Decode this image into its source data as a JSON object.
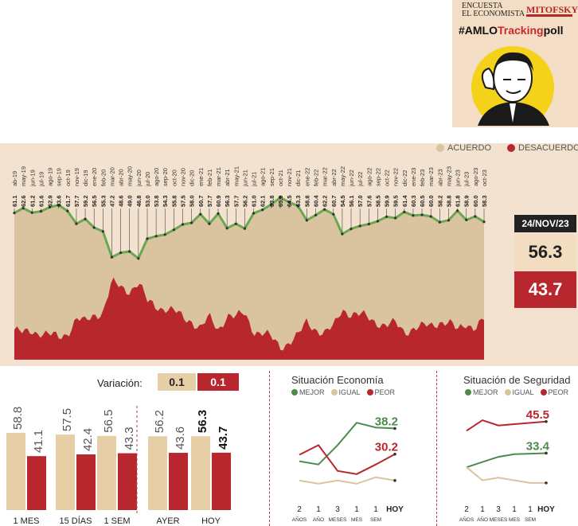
{
  "brand": {
    "encuesta": "ENCUESTA",
    "economista": "EL ECONOMISTA",
    "mitofsky": "MITOFSKY",
    "hashtag_pre": "#AMLO",
    "hashtag_hl": "Tracking",
    "hashtag_post": "poll"
  },
  "legend": {
    "agree": "ACUERDO",
    "disagree": "DESACUERDO"
  },
  "colors": {
    "agree": "#d9c49f",
    "disagree": "#b8272d",
    "line": "#6aa84f",
    "background": "#f3e2cf"
  },
  "current": {
    "date": "24/NOV/23",
    "agree": "56.3",
    "disagree": "43.7"
  },
  "chart_data": [
    {
      "type": "area",
      "series": [
        {
          "name": "ACUERDO",
          "values": [
            61.1,
            62.6,
            61.2,
            61.6,
            62.9,
            63.6,
            61.7,
            57.7,
            59.2,
            56.5,
            55.3,
            47.2,
            48.6,
            49.0,
            46.8,
            53.0,
            53.8,
            54.3,
            55.8,
            57.5,
            58.0,
            60.7,
            57.7,
            60.9,
            56.3,
            57.7,
            56.2,
            61.0,
            62.1,
            63.8,
            65.9,
            64.5,
            63.3,
            58.8,
            60.4,
            62.2,
            60.7,
            54.5,
            56.1,
            57.0,
            57.6,
            58.5,
            59.9,
            59.5,
            61.4,
            60.3,
            60.5,
            60.0,
            58.2,
            58.8,
            61.8,
            58.9,
            60.0,
            58.3
          ]
        }
      ],
      "x_labels": [
        "ab-19",
        "may-19",
        "jun-19",
        "jul-19",
        "ago-19",
        "sep-19",
        "oct-19",
        "nov-19",
        "dic-19",
        "ene-20",
        "feb-20",
        "mar-20",
        "abr-20",
        "may-20",
        "jun-20",
        "jul-20",
        "ago-20",
        "sep-20",
        "oct-20",
        "nov-20",
        "dic-20",
        "ene-21",
        "feb-21",
        "mar-21",
        "abr-21",
        "may-21",
        "jun-21",
        "jul-21",
        "ago-21",
        "sep-21",
        "oct-21",
        "nov-21",
        "dic-21",
        "ene-22",
        "feb-22",
        "mar-22",
        "abr-22",
        "may-22",
        "jun-22",
        "jul-22",
        "ago-22",
        "sep-22",
        "oct-22",
        "nov-22",
        "dic-22",
        "ene-23",
        "feb-23",
        "mar-23",
        "abr-23",
        "may-23",
        "jun-23",
        "jul-23",
        "ago-23",
        "oct-23"
      ],
      "value_labels": [
        "61.1",
        "62.6",
        "61.2",
        "61.6",
        "62.9",
        "63.6",
        "61.7",
        "57.7",
        "59.2",
        "56.5",
        "55.3",
        "47.2",
        "48.6",
        "49.0",
        "46.8",
        "53.0",
        "53.8",
        "54.3",
        "55.8",
        "57.5",
        "58.0",
        "60.7",
        "57.7",
        "60.9",
        "56.3",
        "57.7",
        "56.2",
        "61.0",
        "62.1",
        "63.8",
        "65.9",
        "64.5",
        "63.3",
        "58.8",
        "60.4",
        "62.2",
        "60.7",
        "54.5",
        "56.1",
        "57.0",
        "57.6",
        "58.5",
        "59.9",
        "59.5",
        "61.4",
        "60.3",
        "60.5",
        "60.0",
        "58.2",
        "58.8",
        "61.8",
        "58.9",
        "60.0",
        "58.3"
      ]
    },
    {
      "type": "bar",
      "variation": {
        "label": "Variación:",
        "agree": "0.1",
        "disagree": "0.1"
      },
      "categories": [
        "1 MES",
        "15 DÍAS",
        "1 SEM",
        "AYER",
        "HOY"
      ],
      "series": [
        {
          "name": "ACUERDO",
          "values": [
            58.8,
            57.5,
            56.5,
            56.2,
            56.3
          ]
        },
        {
          "name": "DESACUERDO",
          "values": [
            41.1,
            42.4,
            43.3,
            43.6,
            43.7
          ]
        }
      ],
      "value_labels_agree": [
        "58.8",
        "57.5",
        "56.5",
        "56.2",
        "56.3"
      ],
      "value_labels_disagree": [
        "41.1",
        "42.4",
        "43.3",
        "43.6",
        "43.7"
      ]
    },
    {
      "type": "line",
      "title": "Situación Economía",
      "legend": [
        "MEJOR",
        "IGUAL",
        "PEOR"
      ],
      "x_labels": [
        [
          "2",
          "AÑOS"
        ],
        [
          "1",
          "AÑO"
        ],
        [
          "3",
          "MESES"
        ],
        [
          "1",
          "MES"
        ],
        [
          "1",
          "SEM"
        ],
        [
          "HOY",
          ""
        ]
      ],
      "series": [
        {
          "name": "MEJOR",
          "values": [
            28,
            27,
            33,
            40,
            38.5,
            38.2
          ]
        },
        {
          "name": "IGUAL",
          "values": [
            22,
            21,
            22,
            21,
            23,
            22
          ]
        },
        {
          "name": "PEOR",
          "values": [
            30,
            33,
            25,
            24,
            27,
            30.2
          ]
        }
      ],
      "end_labels": {
        "top": "38.2",
        "bottom": "30.2"
      },
      "ylim": [
        18,
        44
      ]
    },
    {
      "type": "line",
      "title": "Situación de Seguridad",
      "legend": [
        "MEJOR",
        "IGUAL",
        "PEOR"
      ],
      "x_labels": [
        [
          "2",
          "AÑOS"
        ],
        [
          "1",
          "AÑO"
        ],
        [
          "3",
          "MESES"
        ],
        [
          "1",
          "MES"
        ],
        [
          "1",
          "SEM"
        ],
        [
          "HOY",
          ""
        ]
      ],
      "series": [
        {
          "name": "MEJOR",
          "values": [
            28,
            30,
            32,
            33,
            33.2,
            33.4
          ]
        },
        {
          "name": "IGUAL",
          "values": [
            28,
            23,
            24,
            23,
            22,
            22
          ]
        },
        {
          "name": "PEOR",
          "values": [
            42,
            46,
            44,
            44.5,
            45,
            45.5
          ]
        }
      ],
      "end_labels": {
        "top": "45.5",
        "bottom": "33.4"
      },
      "ylim": [
        18,
        50
      ]
    }
  ]
}
